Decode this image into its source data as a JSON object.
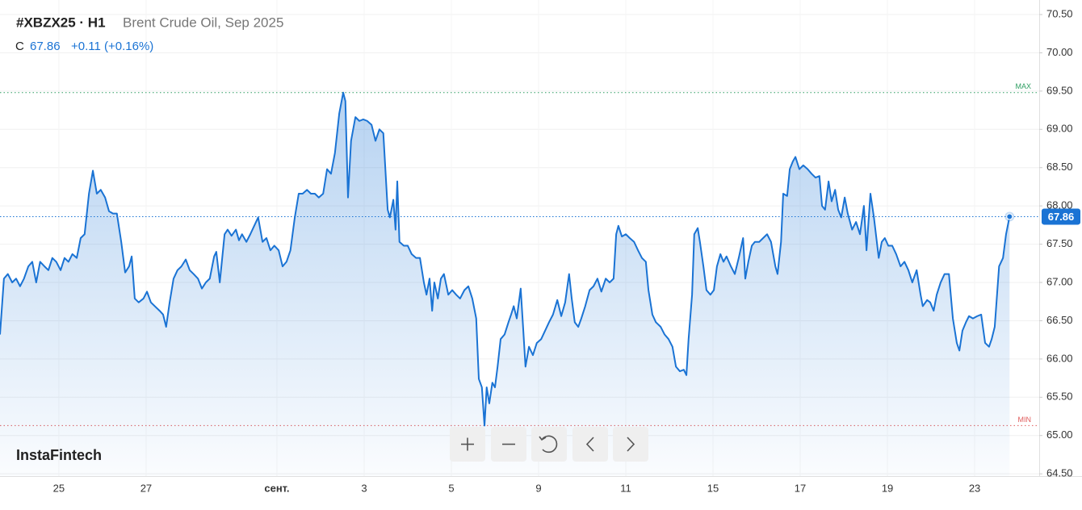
{
  "chart_data": {
    "type": "area",
    "title": "#XBZX25 · H1",
    "subtitle": "Brent Crude Oil, Sep 2025",
    "close_label": "C",
    "change": "+0.11 (+0.16%)",
    "watermark": "InstaFintech",
    "series": [
      {
        "color": "#1a73d4",
        "x": [
          -1.35,
          -1.26,
          -1.17,
          -1.07,
          -0.98,
          -0.89,
          -0.8,
          -0.7,
          -0.61,
          -0.52,
          -0.43,
          -0.33,
          -0.24,
          -0.15,
          -0.06,
          0.04,
          0.13,
          0.22,
          0.31,
          0.41,
          0.5,
          0.59,
          0.69,
          0.78,
          0.87,
          0.96,
          1.06,
          1.15,
          1.24,
          1.33,
          1.43,
          1.52,
          1.61,
          1.67,
          1.74,
          1.83,
          1.94,
          2.02,
          2.11,
          2.2,
          2.31,
          2.39,
          2.46,
          2.54,
          2.63,
          2.72,
          2.81,
          2.91,
          3,
          3.09,
          3.19,
          3.28,
          3.37,
          3.46,
          3.56,
          3.61,
          3.69,
          3.8,
          3.87,
          3.96,
          4.06,
          4.13,
          4.2,
          4.3,
          4.39,
          4.48,
          4.57,
          4.67,
          4.76,
          4.85,
          4.94,
          5.04,
          5.13,
          5.22,
          5.31,
          5.41,
          5.5,
          5.59,
          5.69,
          5.78,
          5.87,
          5.96,
          6.06,
          6.15,
          6.24,
          6.33,
          6.43,
          6.52,
          6.57,
          6.63,
          6.7,
          6.8,
          6.89,
          6.98,
          7.07,
          7.17,
          7.26,
          7.35,
          7.44,
          7.54,
          7.59,
          7.67,
          7.72,
          7.76,
          7.81,
          7.91,
          8,
          8.09,
          8.19,
          8.28,
          8.37,
          8.43,
          8.5,
          8.56,
          8.61,
          8.69,
          8.76,
          8.83,
          8.93,
          9.02,
          9.11,
          9.2,
          9.3,
          9.39,
          9.48,
          9.57,
          9.63,
          9.7,
          9.76,
          9.81,
          9.87,
          9.94,
          10,
          10.06,
          10.13,
          10.22,
          10.31,
          10.37,
          10.43,
          10.5,
          10.59,
          10.65,
          10.7,
          10.78,
          10.87,
          10.96,
          11.06,
          11.15,
          11.24,
          11.33,
          11.43,
          11.52,
          11.61,
          11.7,
          11.76,
          11.83,
          11.91,
          11.98,
          12.07,
          12.17,
          12.26,
          12.35,
          12.44,
          12.54,
          12.63,
          12.72,
          12.78,
          12.83,
          12.91,
          13,
          13.09,
          13.19,
          13.28,
          13.37,
          13.46,
          13.52,
          13.61,
          13.69,
          13.8,
          13.89,
          13.98,
          14.07,
          14.15,
          14.24,
          14.33,
          14.39,
          14.44,
          14.52,
          14.57,
          14.65,
          14.7,
          14.78,
          14.85,
          14.94,
          15.02,
          15.09,
          15.17,
          15.24,
          15.31,
          15.41,
          15.5,
          15.59,
          15.69,
          15.74,
          15.81,
          15.89,
          15.96,
          16.06,
          16.15,
          16.24,
          16.33,
          16.43,
          16.48,
          16.56,
          16.61,
          16.7,
          16.76,
          16.83,
          16.89,
          16.98,
          17.07,
          17.17,
          17.26,
          17.35,
          17.44,
          17.5,
          17.57,
          17.65,
          17.72,
          17.8,
          17.87,
          17.94,
          18.02,
          18.09,
          18.19,
          18.28,
          18.37,
          18.46,
          18.52,
          18.61,
          18.69,
          18.8,
          18.87,
          18.94,
          19.02,
          19.11,
          19.2,
          19.3,
          19.39,
          19.48,
          19.57,
          19.67,
          19.76,
          19.81,
          19.91,
          19.98,
          20.06,
          20.13,
          20.22,
          20.31,
          20.41,
          20.5,
          20.59,
          20.65,
          20.72,
          20.8,
          20.87,
          20.96,
          21.06,
          21.15,
          21.24,
          21.33,
          21.39,
          21.46,
          21.56,
          21.65,
          21.72,
          21.8
        ],
        "values": [
          66.32,
          67.05,
          67.11,
          67,
          67.05,
          66.95,
          67.05,
          67.21,
          67.27,
          67,
          67.27,
          67.21,
          67.16,
          67.32,
          67.27,
          67.16,
          67.32,
          67.27,
          67.37,
          67.32,
          67.58,
          67.63,
          68.16,
          68.46,
          68.16,
          68.21,
          68.11,
          67.93,
          67.9,
          67.9,
          67.53,
          67.13,
          67.21,
          67.34,
          66.79,
          66.74,
          66.79,
          66.88,
          66.74,
          66.69,
          66.63,
          66.58,
          66.42,
          66.74,
          67.05,
          67.16,
          67.21,
          67.3,
          67.16,
          67.11,
          67.05,
          66.92,
          67,
          67.05,
          67.34,
          67.4,
          67,
          67.63,
          67.69,
          67.61,
          67.69,
          67.55,
          67.63,
          67.53,
          67.63,
          67.74,
          67.85,
          67.53,
          67.58,
          67.42,
          67.48,
          67.42,
          67.21,
          67.27,
          67.42,
          67.85,
          68.16,
          68.16,
          68.21,
          68.16,
          68.16,
          68.11,
          68.16,
          68.48,
          68.42,
          68.69,
          69.21,
          69.48,
          69.37,
          68.11,
          68.85,
          69.16,
          69.11,
          69.13,
          69.11,
          69.06,
          68.85,
          69,
          68.95,
          67.95,
          67.85,
          68.08,
          67.69,
          68.32,
          67.53,
          67.48,
          67.48,
          67.37,
          67.32,
          67.32,
          67,
          66.84,
          67.05,
          66.63,
          67,
          66.79,
          67.05,
          67.11,
          66.84,
          66.9,
          66.84,
          66.79,
          66.9,
          66.95,
          66.79,
          66.53,
          65.74,
          65.63,
          65.13,
          65.63,
          65.42,
          65.69,
          65.63,
          65.9,
          66.26,
          66.32,
          66.48,
          66.58,
          66.69,
          66.53,
          66.92,
          66.37,
          65.9,
          66.16,
          66.05,
          66.21,
          66.26,
          66.37,
          66.48,
          66.58,
          66.77,
          66.56,
          66.74,
          67.11,
          66.79,
          66.48,
          66.42,
          66.53,
          66.69,
          66.9,
          66.95,
          67.05,
          66.88,
          67.05,
          67,
          67.05,
          67.63,
          67.74,
          67.6,
          67.63,
          67.58,
          67.53,
          67.42,
          67.32,
          67.27,
          66.9,
          66.58,
          66.48,
          66.42,
          66.32,
          66.26,
          66.16,
          65.9,
          65.84,
          65.86,
          65.79,
          66.26,
          66.84,
          67.63,
          67.71,
          67.53,
          67.21,
          66.9,
          66.84,
          66.9,
          67.21,
          67.37,
          67.27,
          67.34,
          67.21,
          67.11,
          67.32,
          67.58,
          67.05,
          67.27,
          67.48,
          67.53,
          67.53,
          67.58,
          67.63,
          67.53,
          67.21,
          67.11,
          67.53,
          68.16,
          68.13,
          68.48,
          68.58,
          68.64,
          68.48,
          68.53,
          68.48,
          68.42,
          68.37,
          68.39,
          68,
          67.95,
          68.32,
          68.06,
          68.21,
          67.95,
          67.85,
          68.11,
          67.9,
          67.69,
          67.79,
          67.63,
          68,
          67.42,
          68.16,
          67.85,
          67.32,
          67.53,
          67.58,
          67.48,
          67.48,
          67.37,
          67.21,
          67.27,
          67.16,
          67,
          67.16,
          66.84,
          66.69,
          66.77,
          66.74,
          66.63,
          66.84,
          67,
          67.11,
          67.11,
          66.53,
          66.21,
          66.11,
          66.37,
          66.48,
          66.56,
          66.53,
          66.56,
          66.58,
          66.21,
          66.16,
          66.26,
          66.42,
          67.21,
          67.32,
          67.63,
          67.86
        ]
      }
    ],
    "max_line": {
      "value": 69.48,
      "label": "MAX",
      "color": "#2e9e62"
    },
    "min_line": {
      "value": 65.13,
      "label": "MIN",
      "color": "#e05a5a"
    },
    "xlim": [
      -1.35,
      22.48
    ],
    "ylim": [
      64.47,
      70.69
    ],
    "xticks": [
      {
        "value": 0,
        "label": "25"
      },
      {
        "value": 2,
        "label": "27"
      },
      {
        "value": 5,
        "label": "сент."
      },
      {
        "value": 7,
        "label": "3"
      },
      {
        "value": 9,
        "label": "5"
      },
      {
        "value": 11,
        "label": "9"
      },
      {
        "value": 13,
        "label": "11"
      },
      {
        "value": 15,
        "label": "15"
      },
      {
        "value": 17,
        "label": "17"
      },
      {
        "value": 19,
        "label": "19"
      },
      {
        "value": 21,
        "label": "23"
      }
    ],
    "yticks": [
      {
        "value": 64.5,
        "label": "64.50"
      },
      {
        "value": 65,
        "label": "65.00"
      },
      {
        "value": 65.5,
        "label": "65.50"
      },
      {
        "value": 66,
        "label": "66.00"
      },
      {
        "value": 66.5,
        "label": "66.50"
      },
      {
        "value": 67,
        "label": "67.00"
      },
      {
        "value": 67.5,
        "label": "67.50"
      },
      {
        "value": 68,
        "label": "68.00"
      },
      {
        "value": 68.5,
        "label": "68.50"
      },
      {
        "value": 69,
        "label": "69.00"
      },
      {
        "value": 69.5,
        "label": "69.50"
      },
      {
        "value": 70,
        "label": "70.00"
      },
      {
        "value": 70.5,
        "label": "70.50"
      }
    ],
    "grid": true
  }
}
